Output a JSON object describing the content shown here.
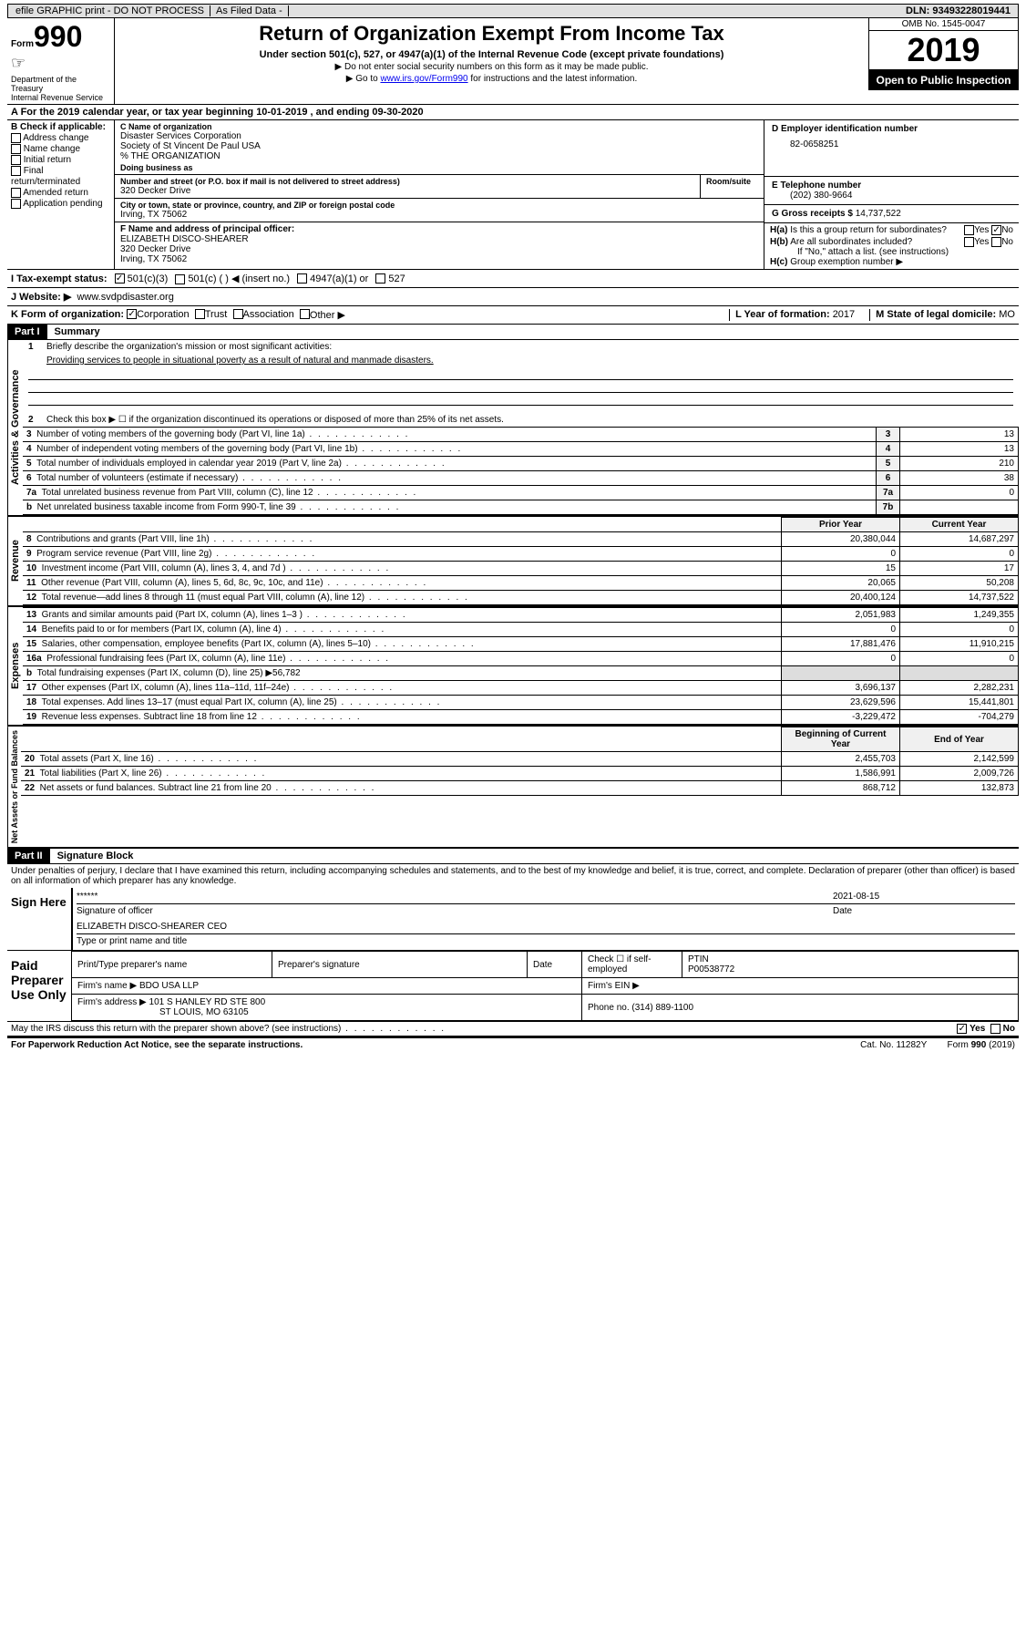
{
  "topbar": {
    "efile": "efile GRAPHIC print - DO NOT PROCESS",
    "asfiled": "As Filed Data -",
    "dln_label": "DLN:",
    "dln": "93493228019441"
  },
  "header": {
    "form_label": "Form",
    "form_num": "990",
    "dept": "Department of the Treasury\nInternal Revenue Service",
    "title": "Return of Organization Exempt From Income Tax",
    "subtitle": "Under section 501(c), 527, or 4947(a)(1) of the Internal Revenue Code (except private foundations)",
    "note1": "▶ Do not enter social security numbers on this form as it may be made public.",
    "note2_pre": "▶ Go to ",
    "note2_link": "www.irs.gov/Form990",
    "note2_post": " for instructions and the latest information.",
    "omb": "OMB No. 1545-0047",
    "year": "2019",
    "inspect": "Open to Public Inspection"
  },
  "row_a": "A  For the 2019 calendar year, or tax year beginning 10-01-2019   , and ending 09-30-2020",
  "col_b": {
    "hdr": "B Check if applicable:",
    "items": [
      "Address change",
      "Name change",
      "Initial return",
      "Final return/terminated",
      "Amended return",
      "Application pending"
    ]
  },
  "col_c": {
    "name_lbl": "C Name of organization",
    "name1": "Disaster Services Corporation",
    "name2": "Society of St Vincent De Paul USA",
    "name3": "% THE ORGANIZATION",
    "dba_lbl": "Doing business as",
    "addr_lbl": "Number and street (or P.O. box if mail is not delivered to street address)",
    "room_lbl": "Room/suite",
    "addr": "320 Decker Drive",
    "city_lbl": "City or town, state or province, country, and ZIP or foreign postal code",
    "city": "Irving, TX  75062",
    "f_lbl": "F  Name and address of principal officer:",
    "f_name": "ELIZABETH DISCO-SHEARER",
    "f_addr": "320 Decker Drive",
    "f_city": "Irving, TX  75062"
  },
  "col_d": {
    "ein_lbl": "D Employer identification number",
    "ein": "82-0658251",
    "tel_lbl": "E Telephone number",
    "tel": "(202) 380-9664",
    "gross_lbl": "G Gross receipts $",
    "gross": "14,737,522",
    "ha_lbl": "H(a)",
    "ha_txt": "Is this a group return for subordinates?",
    "hb_lbl": "H(b)",
    "hb_txt": "Are all subordinates included?",
    "h_note": "If \"No,\" attach a list. (see instructions)",
    "hc_lbl": "H(c)",
    "hc_txt": "Group exemption number ▶"
  },
  "tax_row": {
    "i_lbl": "I  Tax-exempt status:",
    "opts": [
      "501(c)(3)",
      "501(c) (  ) ◀ (insert no.)",
      "4947(a)(1) or",
      "527"
    ]
  },
  "website": {
    "j_lbl": "J  Website: ▶",
    "url": "www.svdpdisaster.org"
  },
  "k_row": {
    "k_lbl": "K Form of organization:",
    "opts": [
      "Corporation",
      "Trust",
      "Association",
      "Other ▶"
    ],
    "l_lbl": "L Year of formation:",
    "l_val": "2017",
    "m_lbl": "M State of legal domicile:",
    "m_val": "MO"
  },
  "part1": {
    "hdr": "Part I",
    "title": "Summary",
    "line1_lbl": "1",
    "line1_txt": "Briefly describe the organization's mission or most significant activities:",
    "line1_val": "Providing services to people in situational poverty as a result of natural and manmade disasters.",
    "line2_lbl": "2",
    "line2_txt": "Check this box ▶ ☐ if the organization discontinued its operations or disposed of more than 25% of its net assets.",
    "gov_label": "Activities & Governance",
    "rev_label": "Revenue",
    "exp_label": "Expenses",
    "net_label": "Net Assets or Fund Balances",
    "gov_rows": [
      {
        "n": "3",
        "d": "Number of voting members of the governing body (Part VI, line 1a)",
        "ln": "3",
        "v": "13"
      },
      {
        "n": "4",
        "d": "Number of independent voting members of the governing body (Part VI, line 1b)",
        "ln": "4",
        "v": "13"
      },
      {
        "n": "5",
        "d": "Total number of individuals employed in calendar year 2019 (Part V, line 2a)",
        "ln": "5",
        "v": "210"
      },
      {
        "n": "6",
        "d": "Total number of volunteers (estimate if necessary)",
        "ln": "6",
        "v": "38"
      },
      {
        "n": "7a",
        "d": "Total unrelated business revenue from Part VIII, column (C), line 12",
        "ln": "7a",
        "v": "0"
      },
      {
        "n": "b",
        "d": "Net unrelated business taxable income from Form 990-T, line 39",
        "ln": "7b",
        "v": ""
      }
    ],
    "col_hdrs": {
      "prior": "Prior Year",
      "current": "Current Year",
      "begin": "Beginning of Current Year",
      "end": "End of Year"
    },
    "rev_rows": [
      {
        "n": "8",
        "d": "Contributions and grants (Part VIII, line 1h)",
        "p": "20,380,044",
        "c": "14,687,297"
      },
      {
        "n": "9",
        "d": "Program service revenue (Part VIII, line 2g)",
        "p": "0",
        "c": "0"
      },
      {
        "n": "10",
        "d": "Investment income (Part VIII, column (A), lines 3, 4, and 7d )",
        "p": "15",
        "c": "17"
      },
      {
        "n": "11",
        "d": "Other revenue (Part VIII, column (A), lines 5, 6d, 8c, 9c, 10c, and 11e)",
        "p": "20,065",
        "c": "50,208"
      },
      {
        "n": "12",
        "d": "Total revenue—add lines 8 through 11 (must equal Part VIII, column (A), line 12)",
        "p": "20,400,124",
        "c": "14,737,522"
      }
    ],
    "exp_rows": [
      {
        "n": "13",
        "d": "Grants and similar amounts paid (Part IX, column (A), lines 1–3 )",
        "p": "2,051,983",
        "c": "1,249,355"
      },
      {
        "n": "14",
        "d": "Benefits paid to or for members (Part IX, column (A), line 4)",
        "p": "0",
        "c": "0"
      },
      {
        "n": "15",
        "d": "Salaries, other compensation, employee benefits (Part IX, column (A), lines 5–10)",
        "p": "17,881,476",
        "c": "11,910,215"
      },
      {
        "n": "16a",
        "d": "Professional fundraising fees (Part IX, column (A), line 11e)",
        "p": "0",
        "c": "0"
      },
      {
        "n": "b",
        "d": "Total fundraising expenses (Part IX, column (D), line 25) ▶56,782",
        "p": "",
        "c": "",
        "shade": true
      },
      {
        "n": "17",
        "d": "Other expenses (Part IX, column (A), lines 11a–11d, 11f–24e)",
        "p": "3,696,137",
        "c": "2,282,231"
      },
      {
        "n": "18",
        "d": "Total expenses. Add lines 13–17 (must equal Part IX, column (A), line 25)",
        "p": "23,629,596",
        "c": "15,441,801"
      },
      {
        "n": "19",
        "d": "Revenue less expenses. Subtract line 18 from line 12",
        "p": "-3,229,472",
        "c": "-704,279"
      }
    ],
    "net_rows": [
      {
        "n": "20",
        "d": "Total assets (Part X, line 16)",
        "p": "2,455,703",
        "c": "2,142,599"
      },
      {
        "n": "21",
        "d": "Total liabilities (Part X, line 26)",
        "p": "1,586,991",
        "c": "2,009,726"
      },
      {
        "n": "22",
        "d": "Net assets or fund balances. Subtract line 21 from line 20",
        "p": "868,712",
        "c": "132,873"
      }
    ]
  },
  "part2": {
    "hdr": "Part II",
    "title": "Signature Block",
    "perjury": "Under penalties of perjury, I declare that I have examined this return, including accompanying schedules and statements, and to the best of my knowledge and belief, it is true, correct, and complete. Declaration of preparer (other than officer) is based on all information of which preparer has any knowledge.",
    "sign_here": "Sign Here",
    "sig_stars": "******",
    "sig_date": "2021-08-15",
    "sig_of_lbl": "Signature of officer",
    "date_lbl": "Date",
    "officer": "ELIZABETH DISCO-SHEARER CEO",
    "type_lbl": "Type or print name and title",
    "paid_lbl": "Paid Preparer Use Only",
    "prep_name_lbl": "Print/Type preparer's name",
    "prep_sig_lbl": "Preparer's signature",
    "prep_date_lbl": "Date",
    "self_emp": "Check ☐ if self-employed",
    "ptin_lbl": "PTIN",
    "ptin": "P00538772",
    "firm_name_lbl": "Firm's name   ▶",
    "firm_name": "BDO USA LLP",
    "firm_ein_lbl": "Firm's EIN ▶",
    "firm_addr_lbl": "Firm's address ▶",
    "firm_addr": "101 S HANLEY RD STE 800",
    "firm_city": "ST LOUIS, MO  63105",
    "phone_lbl": "Phone no.",
    "phone": "(314) 889-1100",
    "discuss": "May the IRS discuss this return with the preparer shown above? (see instructions)"
  },
  "footer": {
    "pra": "For Paperwork Reduction Act Notice, see the separate instructions.",
    "cat": "Cat. No. 11282Y",
    "form": "Form 990 (2019)"
  }
}
